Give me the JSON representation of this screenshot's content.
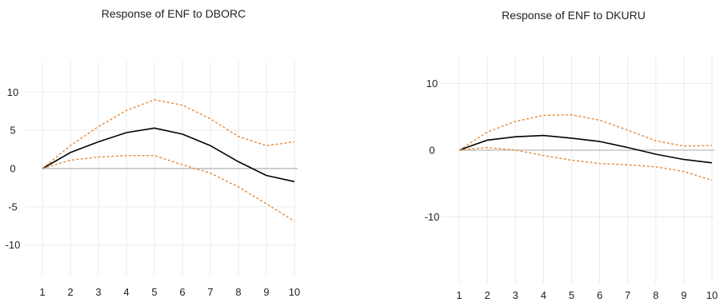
{
  "chart_data": [
    {
      "type": "line",
      "title": "Response of ENF to DBORC",
      "x": [
        1,
        2,
        3,
        4,
        5,
        6,
        7,
        8,
        9,
        10
      ],
      "ylim": [
        -14,
        14
      ],
      "yticks": [
        10,
        5,
        0,
        -5,
        -10
      ],
      "series": [
        {
          "role": "response",
          "values": [
            0,
            2.1,
            3.5,
            4.7,
            5.3,
            4.5,
            3.0,
            0.9,
            -0.9,
            -1.7
          ]
        },
        {
          "role": "upper-band",
          "values": [
            0,
            3.0,
            5.5,
            7.6,
            9.0,
            8.3,
            6.5,
            4.2,
            3.0,
            3.5
          ]
        },
        {
          "role": "lower-band",
          "values": [
            0,
            1.1,
            1.5,
            1.7,
            1.7,
            0.5,
            -0.6,
            -2.4,
            -4.6,
            -6.9
          ]
        }
      ],
      "grid": true,
      "colors": {
        "response": "#000000",
        "band": "#e08a3c",
        "zero": "#b0b0b0",
        "grid": "#ebebeb"
      }
    },
    {
      "type": "line",
      "title": "Response of ENF to DKURU",
      "x": [
        1,
        2,
        3,
        4,
        5,
        6,
        7,
        8,
        9,
        10
      ],
      "ylim": [
        -20,
        14
      ],
      "yticks": [
        10,
        0,
        -10
      ],
      "series": [
        {
          "role": "response",
          "values": [
            0,
            1.5,
            2.0,
            2.2,
            1.8,
            1.3,
            0.4,
            -0.6,
            -1.4,
            -1.9
          ]
        },
        {
          "role": "upper-band",
          "values": [
            0,
            2.7,
            4.3,
            5.2,
            5.3,
            4.5,
            3.0,
            1.4,
            0.6,
            0.7
          ]
        },
        {
          "role": "lower-band",
          "values": [
            0,
            0.4,
            0,
            -0.8,
            -1.5,
            -2.0,
            -2.2,
            -2.5,
            -3.2,
            -4.5
          ]
        }
      ],
      "grid": true,
      "colors": {
        "response": "#000000",
        "band": "#e08a3c",
        "zero": "#b0b0b0",
        "grid": "#ebebeb"
      }
    }
  ]
}
